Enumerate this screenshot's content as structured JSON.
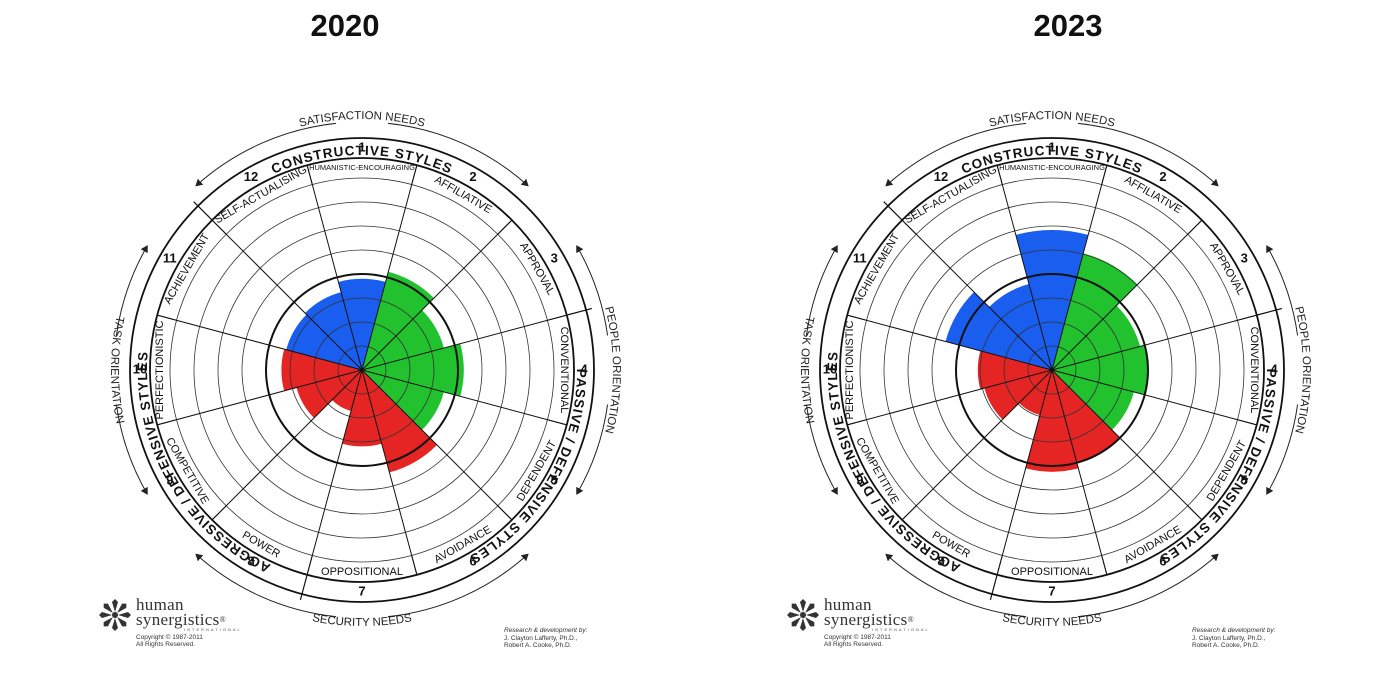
{
  "charts": [
    {
      "year": "2020",
      "chart_data": {
        "type": "circumplex",
        "title": "2020",
        "max_score": 100,
        "groups": [
          {
            "name": "CONSTRUCTIVE STYLES",
            "color": "#1a5ef0",
            "styles": [
              11,
              12,
              1
            ]
          },
          {
            "name": "PASSIVE / DEFENSIVE STYLES",
            "color": "#22c22e",
            "styles": [
              2,
              3,
              4,
              5
            ]
          },
          {
            "name": "AGGRESSIVE / DEFENSIVE STYLES",
            "color": "#e52424",
            "styles": [
              6,
              7,
              8,
              9,
              10
            ]
          }
        ],
        "segments": [
          {
            "number": "1",
            "label": "HUMANISTIC-ENCOURAGING",
            "value": 43
          },
          {
            "number": "2",
            "label": "AFFILIATIVE",
            "value": 48
          },
          {
            "number": "3",
            "label": "APPROVAL",
            "value": 40
          },
          {
            "number": "4",
            "label": "CONVENTIONAL",
            "value": 48
          },
          {
            "number": "5",
            "label": "DEPENDENT",
            "value": 40
          },
          {
            "number": "6",
            "label": "AVOIDANCE",
            "value": 50
          },
          {
            "number": "7",
            "label": "OPPOSITIONAL",
            "value": 36
          },
          {
            "number": "8",
            "label": "POWER",
            "value": 20
          },
          {
            "number": "9",
            "label": "COMPETITIVE",
            "value": 32
          },
          {
            "number": "10",
            "label": "PERFECTIONISTIC",
            "value": 38
          },
          {
            "number": "11",
            "label": "ACHIEVEMENT",
            "value": 37
          },
          {
            "number": "12",
            "label": "SELF-ACTUALISING",
            "value": 38
          }
        ]
      }
    },
    {
      "year": "2023",
      "chart_data": {
        "type": "circumplex",
        "title": "2023",
        "max_score": 100,
        "groups": [
          {
            "name": "CONSTRUCTIVE STYLES",
            "color": "#1a5ef0",
            "styles": [
              11,
              12,
              1
            ]
          },
          {
            "name": "PASSIVE / DEFENSIVE STYLES",
            "color": "#22c22e",
            "styles": [
              2,
              3,
              4,
              5
            ]
          },
          {
            "name": "AGGRESSIVE / DEFENSIVE STYLES",
            "color": "#e52424",
            "styles": [
              6,
              7,
              8,
              9,
              10
            ]
          }
        ],
        "segments": [
          {
            "number": "1",
            "label": "HUMANISTIC-ENCOURAGING",
            "value": 66
          },
          {
            "number": "2",
            "label": "AFFILIATIVE",
            "value": 57
          },
          {
            "number": "3",
            "label": "APPROVAL",
            "value": 43
          },
          {
            "number": "4",
            "label": "CONVENTIONAL",
            "value": 45
          },
          {
            "number": "5",
            "label": "DEPENDENT",
            "value": 40
          },
          {
            "number": "6",
            "label": "AVOIDANCE",
            "value": 45
          },
          {
            "number": "7",
            "label": "OPPOSITIONAL",
            "value": 48
          },
          {
            "number": "8",
            "label": "POWER",
            "value": 22
          },
          {
            "number": "9",
            "label": "COMPETITIVE",
            "value": 33
          },
          {
            "number": "10",
            "label": "PERFECTIONISTIC",
            "value": 35
          },
          {
            "number": "11",
            "label": "ACHIEVEMENT",
            "value": 52
          },
          {
            "number": "12",
            "label": "SELF-ACTUALISING",
            "value": 42
          }
        ]
      }
    }
  ],
  "wheel_text": {
    "constructive": "CONSTRUCTIVE STYLES",
    "passive": "PASSIVE / DEFENSIVE STYLES",
    "aggressive": "AGGRESSIVE / DEFENSIVE STYLES",
    "satisfaction": "SATISFACTION NEEDS",
    "security": "SECURITY NEEDS",
    "people": "PEOPLE ORIENTATION",
    "task": "TASK ORIENTATION"
  },
  "branding": {
    "name_line1": "human",
    "name_line2": "synergistics",
    "registered": "®",
    "international": "INTERNATIONAL",
    "copyright": "Copyright  ©  1987-2011",
    "rights": "All Rights Reserved.",
    "research_title": "Research & development by:",
    "research_1": "J. Clayton Lafferty, Ph.D.,",
    "research_2": "Robert A. Cooke, Ph.D."
  }
}
